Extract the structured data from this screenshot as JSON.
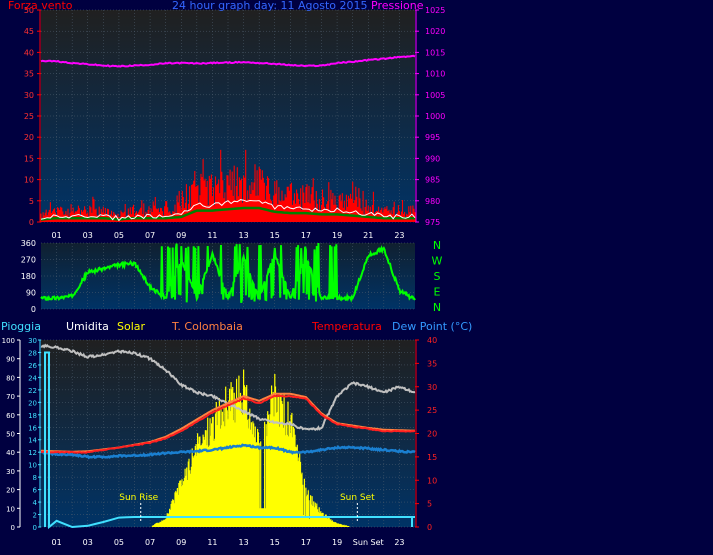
{
  "header": {
    "left": "Forza vento",
    "center": "24 hour graph day: 11 Agosto 2015",
    "right": "Pressione"
  },
  "x_ticks": [
    "01",
    "03",
    "05",
    "07",
    "09",
    "11",
    "13",
    "15",
    "17",
    "19",
    "21",
    "23"
  ],
  "bottom_x_ticks": [
    "01",
    "03",
    "05",
    "07",
    "09",
    "11",
    "13",
    "15",
    "17",
    "19",
    "Sun Set",
    "23"
  ],
  "wind_panel": {
    "left_ticks": [
      "0",
      "5",
      "10",
      "15",
      "20",
      "25",
      "30",
      "35",
      "40",
      "45",
      "50"
    ],
    "right_ticks": [
      "975",
      "980",
      "985",
      "990",
      "995",
      "1000",
      "1005",
      "1010",
      "1015",
      "1020",
      "1025"
    ]
  },
  "dir_panel": {
    "left_ticks": [
      "0",
      "90",
      "180",
      "270",
      "360"
    ],
    "compass": [
      "N",
      "W",
      "S",
      "E",
      "N"
    ]
  },
  "legend": {
    "pioggia": "Pioggia",
    "umidita": "Umidita",
    "solar": "Solar",
    "tcolombaia": "T. Colombaia",
    "temperatura": "Temperatura",
    "dewpoint": "Dew Point (°C)"
  },
  "bottom_panel": {
    "hum_ticks": [
      "0",
      "10",
      "20",
      "30",
      "40",
      "50",
      "60",
      "70",
      "80",
      "90",
      "100"
    ],
    "rain_ticks": [
      "0",
      "2",
      "4",
      "6",
      "8",
      "10",
      "12",
      "14",
      "16",
      "18",
      "20",
      "22",
      "24",
      "26",
      "28",
      "30"
    ],
    "temp_ticks": [
      "0",
      "5",
      "10",
      "15",
      "20",
      "25",
      "30",
      "35",
      "40"
    ],
    "sun_rise": "Sun Rise",
    "sun_set": "Sun Set"
  },
  "colors": {
    "background": "#000040",
    "panel_top": "#202020",
    "panel_bottom": "#003366",
    "wind": "#ff0000",
    "gust_avg": "#ffffff",
    "wind_avg": "#008000",
    "pressure": "#ff00ff",
    "direction": "#00ff00",
    "humidity": "#c0c0c0",
    "solar": "#ffff00",
    "temperature": "#ff2020",
    "tcolombaia": "#ff8040",
    "dewpoint": "#1a7fd0",
    "rain": "#40e0ff"
  },
  "chart_data": [
    {
      "type": "line",
      "title": "24 hour graph day: 11 Agosto 2015",
      "x": [
        0,
        1,
        2,
        3,
        4,
        5,
        6,
        7,
        8,
        9,
        10,
        11,
        12,
        13,
        14,
        15,
        16,
        17,
        18,
        19,
        20,
        21,
        22,
        23,
        24
      ],
      "ylim": [
        0,
        50
      ],
      "y2lim": [
        975,
        1025
      ],
      "series": [
        {
          "name": "Forza vento",
          "values": [
            2,
            3,
            3,
            3,
            3,
            2,
            3,
            3,
            3,
            4,
            9,
            9,
            10,
            11,
            11,
            8,
            7,
            7,
            6,
            6,
            5,
            4,
            3,
            3,
            3
          ]
        },
        {
          "name": "Pressione",
          "values": [
            1013,
            1012.9,
            1012.5,
            1012.2,
            1011.9,
            1011.7,
            1011.9,
            1012.1,
            1012.4,
            1012.5,
            1012.4,
            1012.5,
            1012.6,
            1012.7,
            1012.5,
            1012.3,
            1012,
            1011.8,
            1011.9,
            1012.5,
            1012.8,
            1013.2,
            1013.5,
            1013.9,
            1014.1
          ]
        }
      ]
    },
    {
      "type": "line",
      "x": [
        0,
        1,
        2,
        3,
        4,
        5,
        6,
        7,
        8,
        9,
        10,
        11,
        12,
        13,
        14,
        15,
        16,
        17,
        18,
        19,
        20,
        21,
        22,
        23,
        24
      ],
      "ylim": [
        0,
        360
      ],
      "series": [
        {
          "name": "N W S E N",
          "values": [
            60,
            60,
            70,
            200,
            220,
            240,
            250,
            120,
            60,
            270,
            60,
            300,
            60,
            280,
            60,
            300,
            60,
            280,
            60,
            60,
            60,
            290,
            330,
            100,
            50
          ]
        }
      ]
    },
    {
      "type": "line",
      "x": [
        0,
        1,
        2,
        3,
        4,
        5,
        6,
        7,
        8,
        9,
        10,
        11,
        12,
        13,
        14,
        15,
        16,
        17,
        18,
        19,
        20,
        21,
        22,
        23,
        24
      ],
      "ylim": [
        0,
        100
      ],
      "y2lim": [
        0,
        40
      ],
      "series": [
        {
          "name": "Umidita",
          "values": [
            97,
            96,
            94,
            91,
            92,
            94,
            93,
            90,
            84,
            76,
            72,
            70,
            66,
            62,
            58,
            56,
            55,
            52,
            53,
            70,
            77,
            75,
            72,
            75,
            72
          ]
        },
        {
          "name": "Solar",
          "values": [
            0,
            0,
            0,
            0,
            0,
            0,
            0,
            0,
            5,
            25,
            45,
            60,
            70,
            78,
            45,
            75,
            60,
            20,
            8,
            2,
            0,
            0,
            0,
            0,
            0
          ]
        },
        {
          "name": "Temperatura",
          "values": [
            16,
            16,
            16,
            16,
            16.5,
            17,
            17.5,
            18,
            19,
            20.5,
            22.5,
            24.5,
            26,
            27.5,
            26.5,
            28,
            28,
            27.5,
            24,
            22,
            21.5,
            21,
            20.5,
            20.5,
            20.5
          ]
        },
        {
          "name": "T. Colombaia",
          "values": [
            16.3,
            16.2,
            16.1,
            16.2,
            16.6,
            17,
            17.6,
            18.2,
            19.3,
            21,
            23,
            25,
            26.5,
            28,
            27,
            28.5,
            28.5,
            27.8,
            24.3,
            22.2,
            21.7,
            21.2,
            20.8,
            20.7,
            20.6
          ]
        },
        {
          "name": "Dew Point (°C)",
          "values": [
            16,
            15.5,
            15.5,
            15,
            15,
            15.2,
            15.3,
            15.5,
            15.8,
            16,
            16.2,
            16.5,
            17,
            17.5,
            17,
            17,
            16,
            16,
            16.5,
            17,
            17,
            16.8,
            16.5,
            16.2,
            16
          ]
        },
        {
          "name": "Pioggia",
          "values": [
            28,
            1,
            0,
            0.2,
            0.8,
            1.5,
            1.6,
            1.6,
            1.6,
            1.6,
            1.6,
            1.6,
            1.6,
            1.6,
            1.6,
            1.6,
            1.6,
            1.6,
            1.6,
            1.6,
            1.6,
            1.6,
            1.6,
            1.6,
            1.6
          ]
        }
      ]
    }
  ]
}
